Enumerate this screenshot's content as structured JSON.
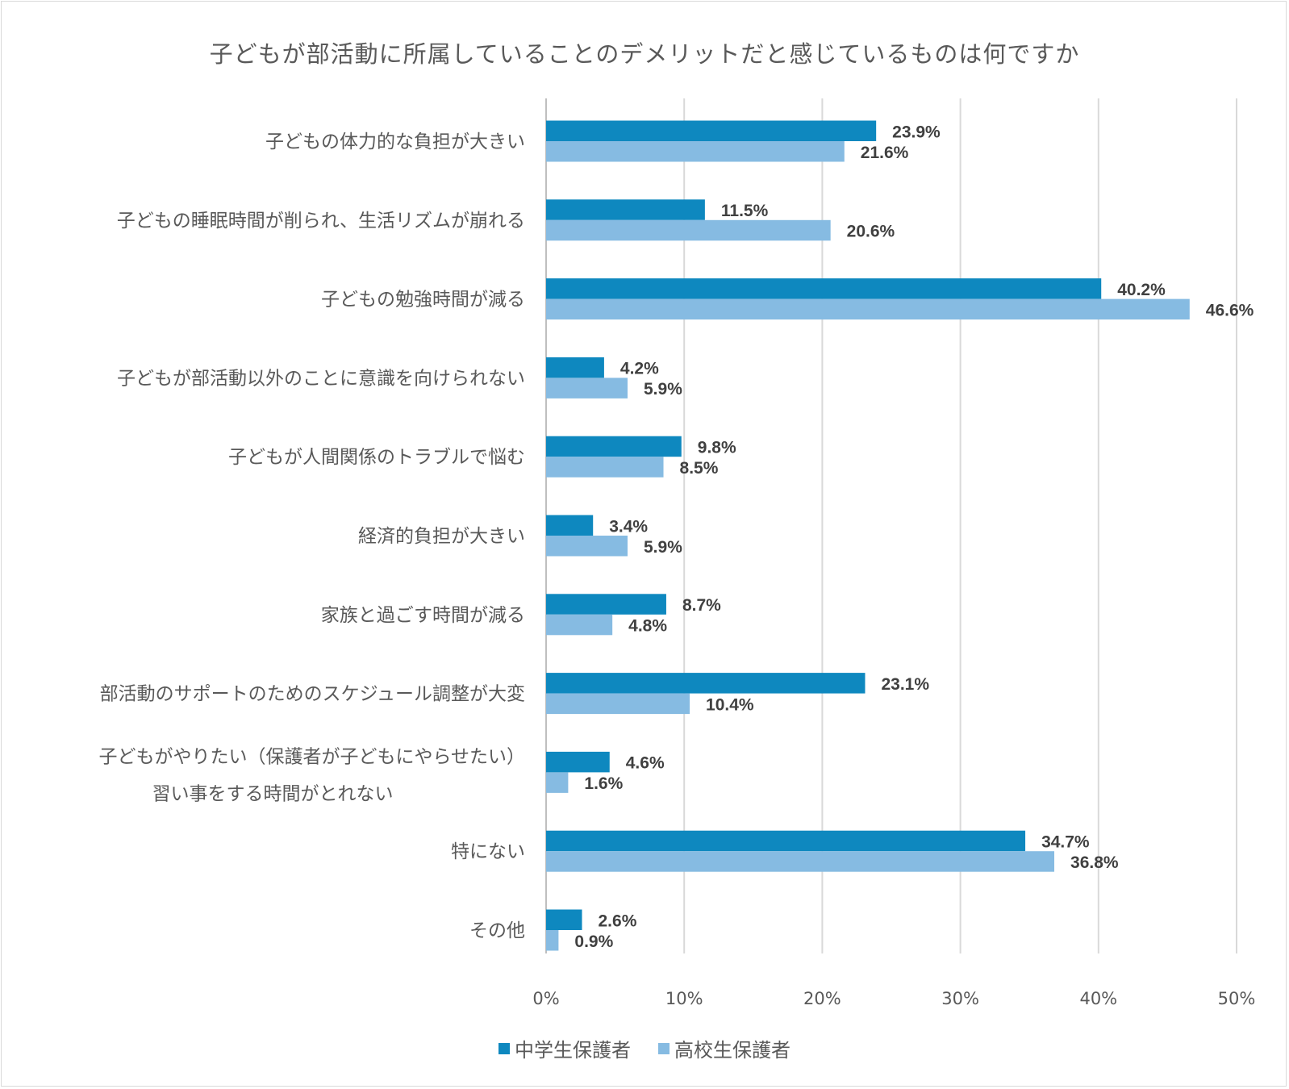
{
  "chart_data": {
    "type": "bar",
    "orientation": "horizontal",
    "title": "子どもが部活動に所属していることのデメリットだと感じているものは何ですか",
    "categories": [
      [
        "子どもの体力的な負担が大きい"
      ],
      [
        "子どもの睡眠時間が削られ、生活リズムが崩れる"
      ],
      [
        "子どもの勉強時間が減る"
      ],
      [
        "子どもが部活動以外のことに意識を向けられない"
      ],
      [
        "子どもが人間関係のトラブルで悩む"
      ],
      [
        "経済的負担が大きい"
      ],
      [
        "家族と過ごす時間が減る"
      ],
      [
        "部活動のサポートのためのスケジュール調整が大変"
      ],
      [
        "子どもがやりたい（保護者が子どもにやらせたい）",
        "習い事をする時間がとれない"
      ],
      [
        "特にない"
      ],
      [
        "その他"
      ]
    ],
    "series": [
      {
        "name": "中学生保護者",
        "color": "#0e88bf",
        "values": [
          23.9,
          11.5,
          40.2,
          4.2,
          9.8,
          3.4,
          8.7,
          23.1,
          4.6,
          34.7,
          2.6
        ]
      },
      {
        "name": "高校生保護者",
        "color": "#86bbe2",
        "values": [
          21.6,
          20.6,
          46.6,
          5.9,
          8.5,
          5.9,
          4.8,
          10.4,
          1.6,
          36.8,
          0.9
        ]
      }
    ],
    "xlim": [
      0,
      50
    ],
    "xticks": [
      "0%",
      "10%",
      "20%",
      "30%",
      "40%",
      "50%"
    ],
    "value_suffix": "%",
    "grid": true,
    "legend_position": "bottom"
  }
}
